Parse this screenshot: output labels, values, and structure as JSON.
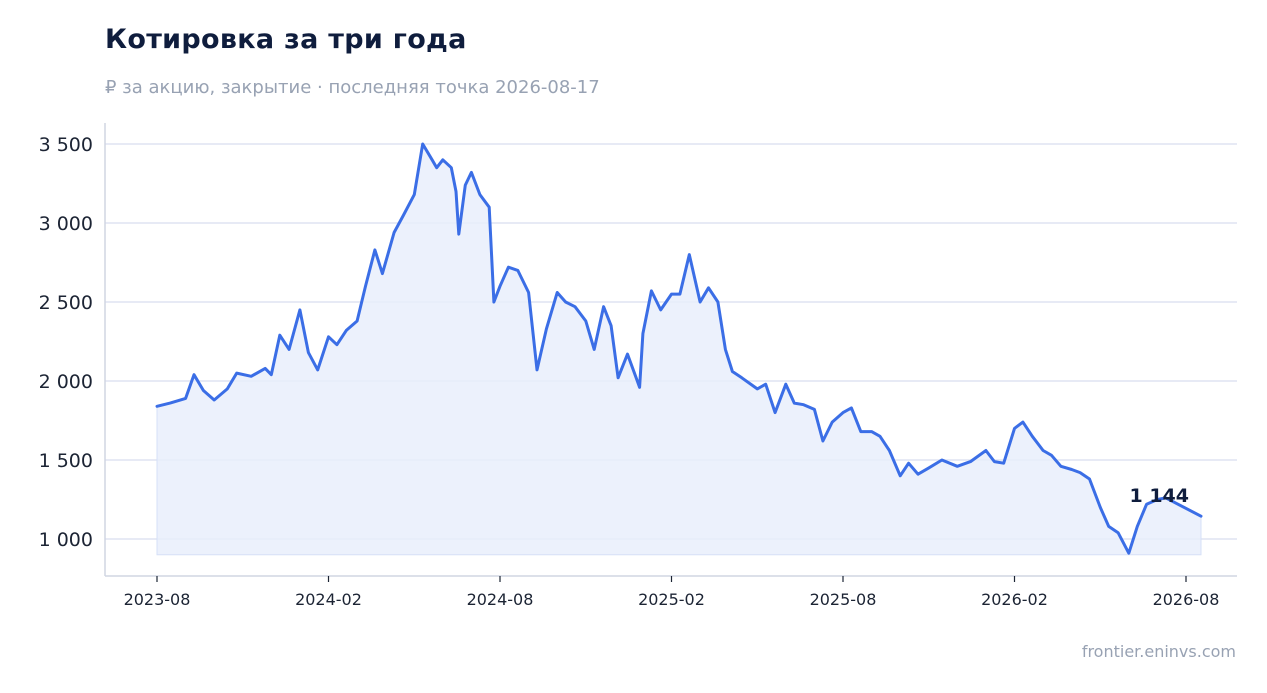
{
  "header": {
    "title": "Котировка за три года",
    "subtitle": "₽ за акцию, закрытие · последняя точка 2026-08-17"
  },
  "footer": {
    "source": "frontier.eninvs.com"
  },
  "colors": {
    "line": "#3b6ee6",
    "fill": "#e9effc",
    "grid": "#dfe4f2",
    "axis": "#d0d5e2"
  },
  "chart_data": {
    "type": "area",
    "title": "Котировка за три года",
    "subtitle": "₽ за акцию, закрытие · последняя точка 2026-08-17",
    "xlabel": "",
    "ylabel": "",
    "xlim": [
      "2023-08",
      "2026-08"
    ],
    "ylim": [
      900,
      3500
    ],
    "y_ticks": [
      1000,
      1500,
      2000,
      2500,
      3000,
      3500
    ],
    "y_tick_labels": [
      "1 000",
      "1 500",
      "2 000",
      "2 500",
      "3 000",
      "3 500"
    ],
    "x_tick_labels": [
      "2023-08",
      "2024-02",
      "2024-08",
      "2025-02",
      "2025-08",
      "2026-02",
      "2026-08"
    ],
    "grid": "horizontal",
    "last_value_label": "1 144",
    "series": [
      {
        "points": [
          [
            "2023-08-01",
            1840
          ],
          [
            "2023-08-15",
            1860
          ],
          [
            "2023-09-01",
            1890
          ],
          [
            "2023-09-10",
            2040
          ],
          [
            "2023-09-20",
            1940
          ],
          [
            "2023-10-01",
            1880
          ],
          [
            "2023-10-15",
            1950
          ],
          [
            "2023-10-25",
            2050
          ],
          [
            "2023-11-10",
            2030
          ],
          [
            "2023-11-25",
            2080
          ],
          [
            "2023-12-01",
            2040
          ],
          [
            "2023-12-10",
            2290
          ],
          [
            "2023-12-20",
            2200
          ],
          [
            "2024-01-01",
            2450
          ],
          [
            "2024-01-10",
            2180
          ],
          [
            "2024-01-20",
            2070
          ],
          [
            "2024-02-01",
            2280
          ],
          [
            "2024-02-10",
            2230
          ],
          [
            "2024-02-20",
            2320
          ],
          [
            "2024-03-01",
            2380
          ],
          [
            "2024-03-10",
            2600
          ],
          [
            "2024-03-20",
            2830
          ],
          [
            "2024-03-28",
            2680
          ],
          [
            "2024-04-10",
            2940
          ],
          [
            "2024-04-20",
            3050
          ],
          [
            "2024-05-01",
            3180
          ],
          [
            "2024-05-10",
            3500
          ],
          [
            "2024-05-20",
            3400
          ],
          [
            "2024-05-25",
            3350
          ],
          [
            "2024-06-01",
            3400
          ],
          [
            "2024-06-10",
            3350
          ],
          [
            "2024-06-15",
            3200
          ],
          [
            "2024-06-18",
            2930
          ],
          [
            "2024-06-25",
            3240
          ],
          [
            "2024-07-01",
            3320
          ],
          [
            "2024-07-10",
            3180
          ],
          [
            "2024-07-20",
            3100
          ],
          [
            "2024-07-25",
            2500
          ],
          [
            "2024-08-01",
            2600
          ],
          [
            "2024-08-10",
            2720
          ],
          [
            "2024-08-20",
            2700
          ],
          [
            "2024-09-01",
            2560
          ],
          [
            "2024-09-10",
            2070
          ],
          [
            "2024-09-20",
            2330
          ],
          [
            "2024-10-01",
            2560
          ],
          [
            "2024-10-10",
            2500
          ],
          [
            "2024-10-20",
            2470
          ],
          [
            "2024-11-01",
            2380
          ],
          [
            "2024-11-10",
            2200
          ],
          [
            "2024-11-20",
            2470
          ],
          [
            "2024-11-28",
            2350
          ],
          [
            "2024-12-05",
            2020
          ],
          [
            "2024-12-15",
            2170
          ],
          [
            "2024-12-28",
            1960
          ],
          [
            "2025-01-01",
            2300
          ],
          [
            "2025-01-10",
            2570
          ],
          [
            "2025-01-20",
            2450
          ],
          [
            "2025-02-01",
            2550
          ],
          [
            "2025-02-10",
            2550
          ],
          [
            "2025-02-20",
            2800
          ],
          [
            "2025-03-01",
            2500
          ],
          [
            "2025-03-10",
            2590
          ],
          [
            "2025-03-20",
            2500
          ],
          [
            "2025-03-28",
            2200
          ],
          [
            "2025-04-05",
            2060
          ],
          [
            "2025-04-15",
            2020
          ],
          [
            "2025-05-01",
            1950
          ],
          [
            "2025-05-10",
            1980
          ],
          [
            "2025-05-20",
            1800
          ],
          [
            "2025-06-01",
            1980
          ],
          [
            "2025-06-10",
            1860
          ],
          [
            "2025-06-20",
            1850
          ],
          [
            "2025-07-01",
            1820
          ],
          [
            "2025-07-10",
            1620
          ],
          [
            "2025-07-20",
            1740
          ],
          [
            "2025-08-01",
            1800
          ],
          [
            "2025-08-10",
            1830
          ],
          [
            "2025-08-20",
            1680
          ],
          [
            "2025-09-01",
            1680
          ],
          [
            "2025-09-10",
            1650
          ],
          [
            "2025-09-20",
            1560
          ],
          [
            "2025-10-01",
            1400
          ],
          [
            "2025-10-10",
            1480
          ],
          [
            "2025-10-20",
            1410
          ],
          [
            "2025-11-01",
            1450
          ],
          [
            "2025-11-15",
            1500
          ],
          [
            "2025-12-01",
            1460
          ],
          [
            "2025-12-15",
            1490
          ],
          [
            "2026-01-01",
            1560
          ],
          [
            "2026-01-10",
            1490
          ],
          [
            "2026-01-20",
            1480
          ],
          [
            "2026-02-01",
            1700
          ],
          [
            "2026-02-10",
            1740
          ],
          [
            "2026-02-20",
            1650
          ],
          [
            "2026-03-01",
            1560
          ],
          [
            "2026-03-10",
            1530
          ],
          [
            "2026-03-20",
            1460
          ],
          [
            "2026-04-01",
            1440
          ],
          [
            "2026-04-10",
            1420
          ],
          [
            "2026-04-20",
            1380
          ],
          [
            "2026-05-01",
            1200
          ],
          [
            "2026-05-10",
            1080
          ],
          [
            "2026-05-20",
            1040
          ],
          [
            "2026-06-01",
            910
          ],
          [
            "2026-06-10",
            1080
          ],
          [
            "2026-06-20",
            1220
          ],
          [
            "2026-07-01",
            1250
          ],
          [
            "2026-07-10",
            1260
          ],
          [
            "2026-08-17",
            1144
          ]
        ]
      }
    ]
  }
}
